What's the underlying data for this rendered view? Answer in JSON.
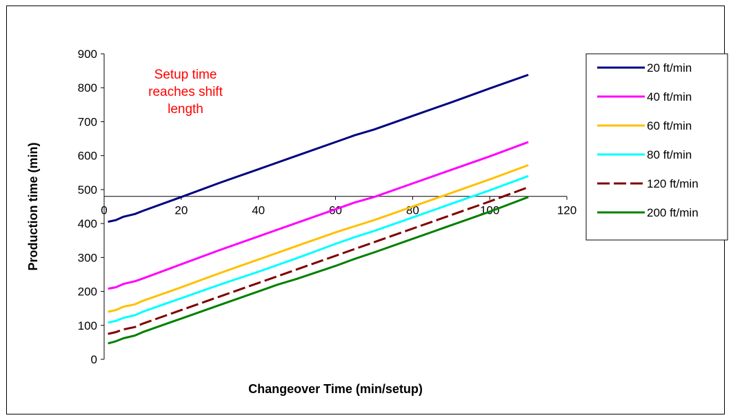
{
  "chart_data": {
    "type": "line",
    "title": "",
    "xlabel": "Changeover Time  (min/setup)",
    "ylabel": "Production time (min)",
    "xlim": [
      0,
      120
    ],
    "ylim": [
      0,
      900
    ],
    "x_ticks": [
      0,
      20,
      40,
      60,
      80,
      100,
      120
    ],
    "y_ticks": [
      0,
      100,
      200,
      300,
      400,
      500,
      600,
      700,
      800,
      900
    ],
    "x_axis_at_y": 480,
    "grid": false,
    "legend_position": "right",
    "annotation": {
      "lines": [
        "Setup time",
        "reaches shift",
        "length"
      ],
      "color": "#ff0000"
    },
    "series": [
      {
        "name": "20 ft/min",
        "color": "#000080",
        "dash": false,
        "points": [
          [
            1,
            405
          ],
          [
            3,
            410
          ],
          [
            5,
            420
          ],
          [
            8,
            428
          ],
          [
            10,
            437
          ],
          [
            20,
            478
          ],
          [
            30,
            520
          ],
          [
            40,
            560
          ],
          [
            50,
            600
          ],
          [
            60,
            640
          ],
          [
            65,
            660
          ],
          [
            70,
            677
          ],
          [
            80,
            717
          ],
          [
            90,
            757
          ],
          [
            100,
            798
          ],
          [
            110,
            838
          ]
        ]
      },
      {
        "name": "40 ft/min",
        "color": "#ff00ff",
        "dash": false,
        "points": [
          [
            1,
            208
          ],
          [
            3,
            212
          ],
          [
            5,
            222
          ],
          [
            8,
            230
          ],
          [
            10,
            238
          ],
          [
            20,
            280
          ],
          [
            30,
            322
          ],
          [
            40,
            362
          ],
          [
            50,
            402
          ],
          [
            60,
            442
          ],
          [
            65,
            462
          ],
          [
            70,
            478
          ],
          [
            80,
            518
          ],
          [
            90,
            558
          ],
          [
            100,
            598
          ],
          [
            110,
            640
          ]
        ]
      },
      {
        "name": "60 ft/min",
        "color": "#ffc000",
        "dash": false,
        "points": [
          [
            1,
            140
          ],
          [
            3,
            145
          ],
          [
            5,
            155
          ],
          [
            8,
            162
          ],
          [
            10,
            172
          ],
          [
            20,
            212
          ],
          [
            30,
            254
          ],
          [
            40,
            294
          ],
          [
            50,
            334
          ],
          [
            60,
            374
          ],
          [
            65,
            392
          ],
          [
            70,
            410
          ],
          [
            80,
            450
          ],
          [
            90,
            490
          ],
          [
            100,
            530
          ],
          [
            110,
            572
          ]
        ]
      },
      {
        "name": "80 ft/min",
        "color": "#00ffff",
        "dash": false,
        "points": [
          [
            1,
            108
          ],
          [
            3,
            113
          ],
          [
            5,
            122
          ],
          [
            8,
            130
          ],
          [
            10,
            140
          ],
          [
            20,
            180
          ],
          [
            30,
            220
          ],
          [
            40,
            258
          ],
          [
            50,
            298
          ],
          [
            60,
            340
          ],
          [
            65,
            360
          ],
          [
            70,
            378
          ],
          [
            80,
            418
          ],
          [
            90,
            458
          ],
          [
            100,
            498
          ],
          [
            110,
            540
          ]
        ]
      },
      {
        "name": "120 ft/min",
        "color": "#800000",
        "dash": true,
        "points": [
          [
            1,
            75
          ],
          [
            3,
            80
          ],
          [
            5,
            88
          ],
          [
            8,
            95
          ],
          [
            10,
            105
          ],
          [
            20,
            145
          ],
          [
            30,
            185
          ],
          [
            40,
            225
          ],
          [
            50,
            265
          ],
          [
            60,
            305
          ],
          [
            65,
            325
          ],
          [
            70,
            345
          ],
          [
            80,
            385
          ],
          [
            90,
            425
          ],
          [
            100,
            465
          ],
          [
            110,
            507
          ]
        ]
      },
      {
        "name": "200 ft/min",
        "color": "#008000",
        "dash": false,
        "points": [
          [
            1,
            47
          ],
          [
            3,
            53
          ],
          [
            5,
            62
          ],
          [
            8,
            70
          ],
          [
            10,
            80
          ],
          [
            20,
            120
          ],
          [
            30,
            160
          ],
          [
            40,
            200
          ],
          [
            45,
            220
          ],
          [
            50,
            237
          ],
          [
            60,
            275
          ],
          [
            65,
            296
          ],
          [
            70,
            315
          ],
          [
            80,
            355
          ],
          [
            90,
            395
          ],
          [
            100,
            435
          ],
          [
            110,
            478
          ]
        ]
      }
    ]
  }
}
